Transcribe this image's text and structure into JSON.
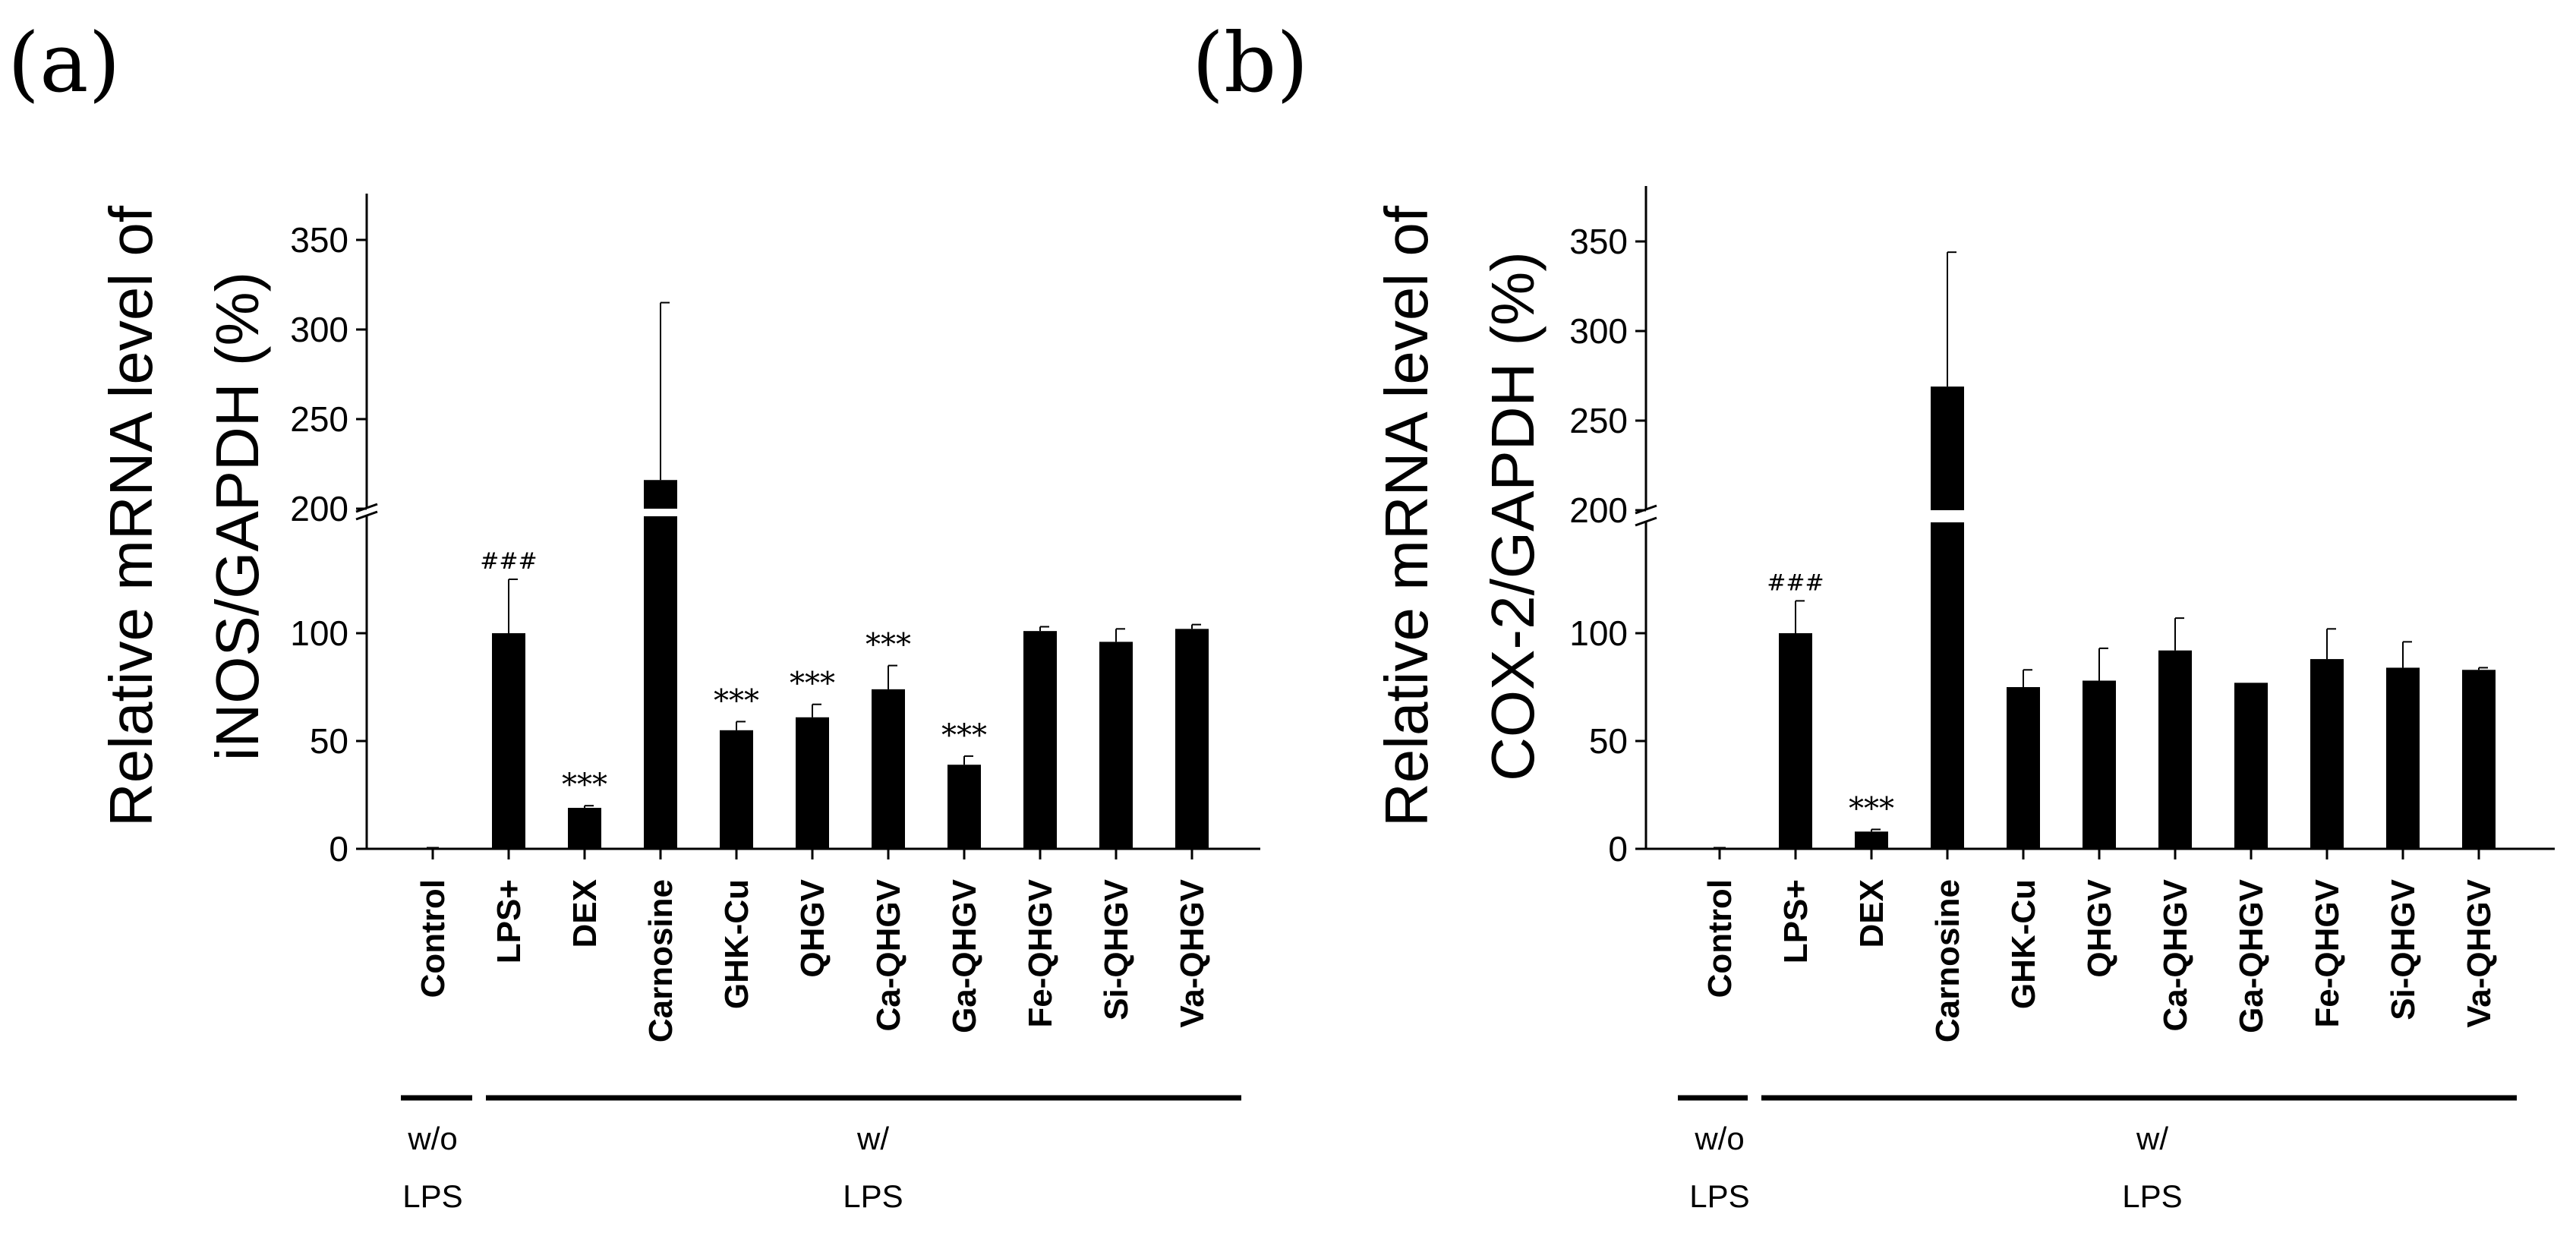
{
  "figure": {
    "groups": [
      {
        "label_line1": "w/o",
        "label_line2": "LPS",
        "categories": [
          "Control"
        ]
      },
      {
        "label_line1": "w/",
        "label_line2": "LPS",
        "categories": [
          "LPS+",
          "DEX",
          "Carnosine",
          "GHK-Cu",
          "QHGV",
          "Ca-QHGV",
          "Ga-QHGV",
          "Fe-QHGV",
          "Si-QHGV",
          "Va-QHGV"
        ]
      }
    ]
  },
  "chart_data": [
    {
      "panel": "(a)",
      "type": "bar",
      "ylabel_line1": "Relative mRNA level of",
      "ylabel_line2": "iNOS/GAPDH (%)",
      "categories": [
        "Control",
        "LPS+",
        "DEX",
        "Carnosine",
        "GHK-Cu",
        "QHGV",
        "Ca-QHGV",
        "Ga-QHGV",
        "Fe-QHGV",
        "Si-QHGV",
        "Va-QHGV"
      ],
      "values": [
        0,
        100,
        19,
        216,
        55,
        61,
        74,
        39,
        101,
        96,
        102
      ],
      "errors": [
        0,
        25,
        1,
        99,
        4,
        6,
        11,
        4,
        2,
        6,
        2
      ],
      "significance": [
        "",
        "###",
        "***",
        "",
        "***",
        "***",
        "***",
        "***",
        "",
        "",
        ""
      ],
      "yaxis_broken": true,
      "ylim_lower": [
        0,
        150
      ],
      "ylim_upper": [
        200,
        380
      ],
      "yticks_lower": [
        0,
        50,
        100
      ],
      "yticks_upper": [
        200,
        250,
        300,
        350
      ],
      "ytick_labels_lower": [
        "0",
        "50",
        "100"
      ],
      "ytick_labels_upper": [
        "200",
        "250",
        "300",
        "350"
      ]
    },
    {
      "panel": "(b)",
      "type": "bar",
      "ylabel_line1": "Relative mRNA level of",
      "ylabel_line2": "COX-2/GAPDH (%)",
      "categories": [
        "Control",
        "LPS+",
        "DEX",
        "Carnosine",
        "GHK-Cu",
        "QHGV",
        "Ca-QHGV",
        "Ga-QHGV",
        "Fe-QHGV",
        "Si-QHGV",
        "Va-QHGV"
      ],
      "values": [
        0,
        100,
        8,
        269,
        75,
        78,
        92,
        77,
        88,
        84,
        83
      ],
      "errors": [
        0,
        15,
        1,
        75,
        8,
        15,
        15,
        0,
        14,
        12,
        1
      ],
      "significance": [
        "",
        "###",
        "***",
        "",
        "",
        "",
        "",
        "",
        "",
        "",
        ""
      ],
      "yaxis_broken": true,
      "ylim_lower": [
        0,
        150
      ],
      "ylim_upper": [
        200,
        380
      ],
      "yticks_lower": [
        0,
        50,
        100
      ],
      "yticks_upper": [
        200,
        250,
        300,
        350
      ],
      "ytick_labels_lower": [
        "0",
        "50",
        "100"
      ],
      "ytick_labels_upper": [
        "200",
        "250",
        "300",
        "350"
      ]
    }
  ]
}
